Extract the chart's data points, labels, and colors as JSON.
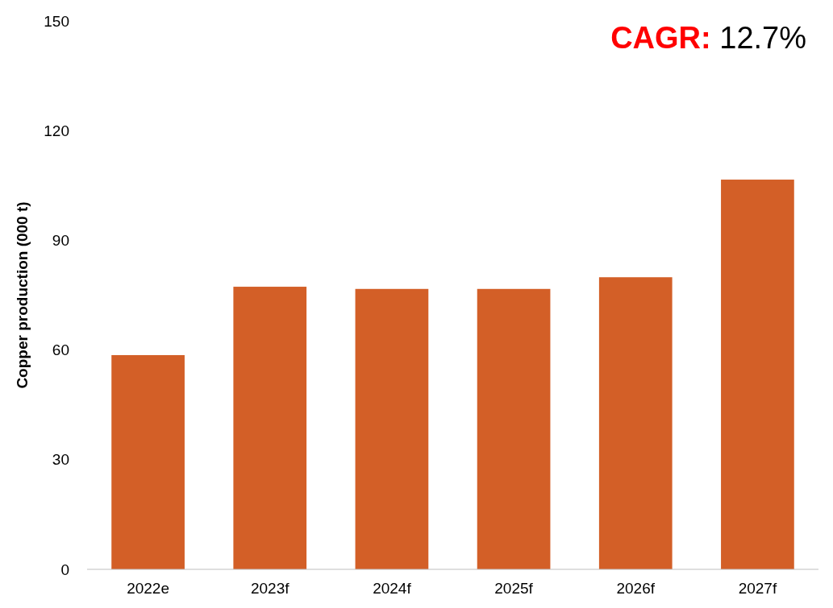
{
  "chart_data": {
    "type": "bar",
    "ylabel": "Copper production (000 t)",
    "categories": [
      "2022e",
      "2023f",
      "2024f",
      "2025f",
      "2026f",
      "2027f"
    ],
    "values": [
      58.6,
      77.3,
      76.7,
      76.7,
      79.9,
      106.6
    ],
    "color": "#d35f27",
    "ylim": [
      0,
      150
    ],
    "yticks": [
      0,
      30,
      60,
      90,
      120,
      150
    ],
    "grid": false,
    "annotations": [
      "CAGR:",
      "12.7%"
    ]
  }
}
